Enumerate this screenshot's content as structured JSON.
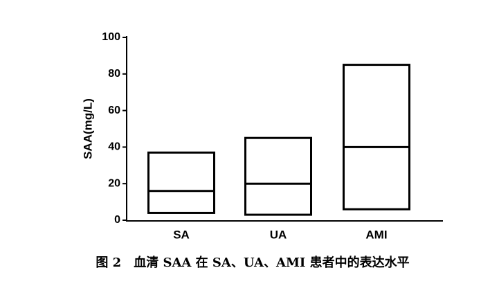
{
  "chart_data": {
    "type": "box",
    "ylabel": "SAA(mg/L)",
    "categories": [
      "SA",
      "UA",
      "AMI"
    ],
    "min": [
      4,
      3,
      6
    ],
    "median": [
      16,
      20,
      40
    ],
    "max": [
      37,
      45,
      85
    ],
    "color": "#000000",
    "ylim": [
      0,
      100
    ],
    "yticks": [
      0,
      20,
      40,
      60,
      80,
      100
    ],
    "caption": "图 2　血清 SAA 在 SA、UA、AMI 患者中的表达水平"
  }
}
